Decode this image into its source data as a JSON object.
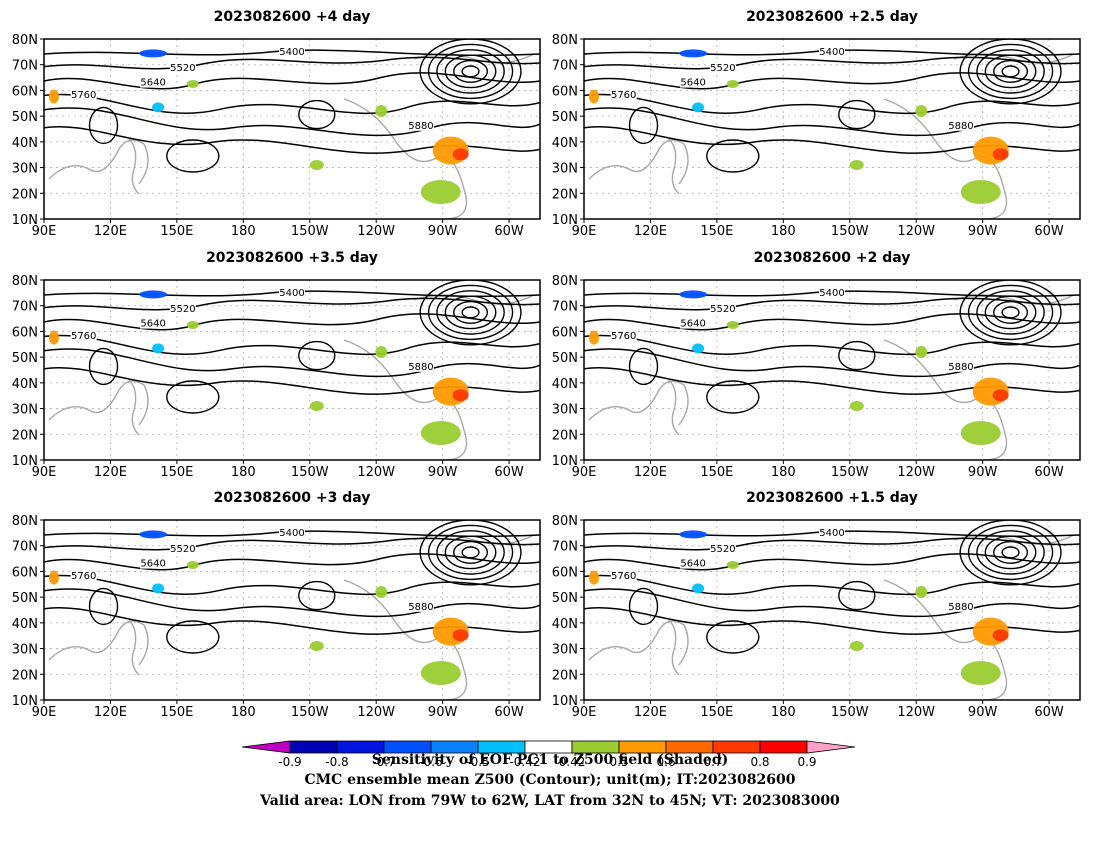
{
  "panels": [
    {
      "title": "2023082600 +4 day"
    },
    {
      "title": "2023082600 +2.5 day"
    },
    {
      "title": "2023082600 +3.5 day"
    },
    {
      "title": "2023082600 +2 day"
    },
    {
      "title": "2023082600 +3 day"
    },
    {
      "title": "2023082600 +1.5 day"
    }
  ],
  "map": {
    "lat_labels": [
      "80N",
      "70N",
      "60N",
      "50N",
      "40N",
      "30N",
      "20N",
      "10N"
    ],
    "lon_labels": [
      "90E",
      "120E",
      "150E",
      "180",
      "150W",
      "120W",
      "90W",
      "60W"
    ],
    "contour_levels_shown": [
      "5400",
      "5520",
      "5640",
      "5760",
      "5880"
    ],
    "contour_color": "#000000",
    "coastline_color": "#a8a8a8"
  },
  "colorbar": {
    "tick_labels": [
      "-0.9",
      "-0.8",
      "-0.7",
      "-0.6",
      "-0.5",
      "-0.42",
      "0.42",
      "0.5",
      "0.6",
      "0.7",
      "0.8",
      "0.9"
    ],
    "colors": [
      "#c000c0",
      "#0000b4",
      "#0014e0",
      "#0050ff",
      "#0a82ff",
      "#00c0ff",
      "#ffffff",
      "#9acd32",
      "#ff9a00",
      "#ff6a00",
      "#ff3a00",
      "#ff0000",
      "#ffa0c8"
    ]
  },
  "captions": [
    "Sensitivity of EOF PC1 to Z500 field (Shaded)",
    "CMC ensemble mean Z500 (Contour); unit(m); IT:2023082600",
    "Valid area: LON from 79W to 62W, LAT from 32N to 45N; VT: 2023083000"
  ]
}
